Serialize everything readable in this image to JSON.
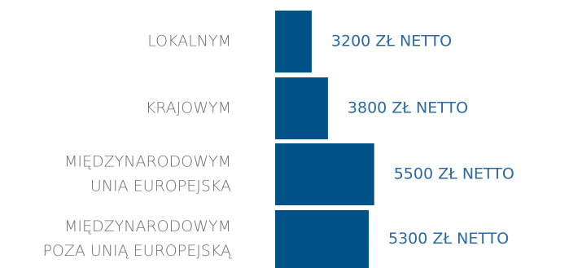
{
  "chart_data": {
    "type": "bar",
    "orientation": "horizontal",
    "categories": [
      [
        "LOKALNYM"
      ],
      [
        "KRAJOWYM"
      ],
      [
        "MIĘDZYNARODOWYM",
        "UNIA EUROPEJSKA"
      ],
      [
        "MIĘDZYNARODOWYM",
        "POZA UNIĄ EUROPEJSKĄ"
      ]
    ],
    "values": [
      3200,
      3800,
      5500,
      5300
    ],
    "value_labels": [
      "3200 ZŁ NETTO",
      "3800 ZŁ NETTO",
      "5500 ZŁ NETTO",
      "5300 ZŁ NETTO"
    ],
    "title": "",
    "xlabel": "",
    "ylabel": "",
    "grid": false,
    "legend": "none",
    "bar_color": "#02528a",
    "value_label_color": "#2b6aa3",
    "category_label_color": "#6f6f6f"
  }
}
